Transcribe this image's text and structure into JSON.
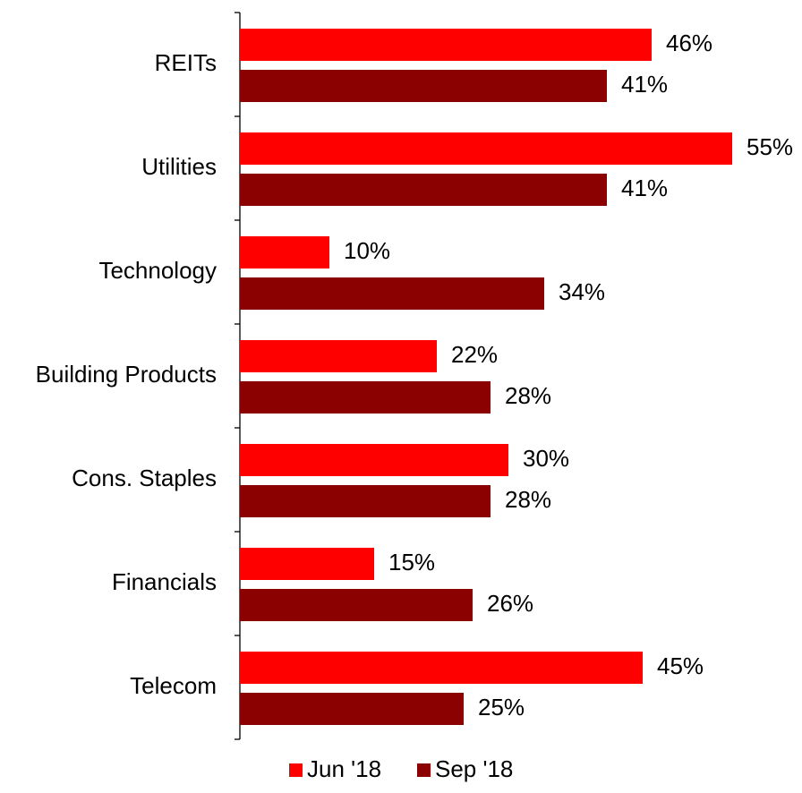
{
  "chart_data": {
    "type": "bar",
    "orientation": "horizontal",
    "categories": [
      "REITs",
      "Utilities",
      "Technology",
      "Building Products",
      "Cons. Staples",
      "Financials",
      "Telecom"
    ],
    "series": [
      {
        "name": "Jun '18",
        "color": "#ff0000",
        "values": [
          46,
          55,
          10,
          22,
          30,
          15,
          45
        ]
      },
      {
        "name": "Sep '18",
        "color": "#8b0000",
        "values": [
          41,
          41,
          34,
          28,
          28,
          26,
          25
        ]
      }
    ],
    "value_suffix": "%",
    "xlim": [
      0,
      55
    ],
    "grid": false,
    "legend_position": "bottom"
  }
}
